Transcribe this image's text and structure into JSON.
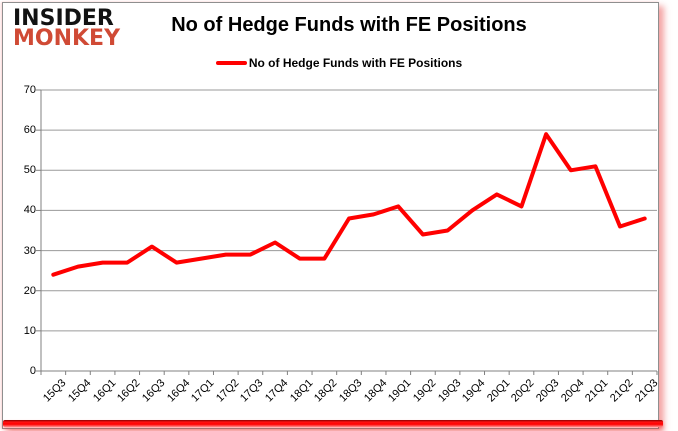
{
  "logo": {
    "line1": "INSIDER",
    "line2": "MONKEY"
  },
  "header": {
    "title": "No of Hedge Funds with FE Positions"
  },
  "legend": {
    "label": "No of Hedge Funds with FE Positions"
  },
  "chart_data": {
    "type": "line",
    "title": "No of Hedge Funds with FE Positions",
    "categories": [
      "15Q3",
      "15Q4",
      "16Q1",
      "16Q2",
      "16Q3",
      "16Q4",
      "17Q1",
      "17Q2",
      "17Q3",
      "17Q4",
      "18Q1",
      "18Q2",
      "18Q3",
      "18Q4",
      "19Q1",
      "19Q2",
      "19Q3",
      "19Q4",
      "20Q1",
      "20Q2",
      "20Q3",
      "20Q4",
      "21Q1",
      "21Q2",
      "21Q3"
    ],
    "series": [
      {
        "name": "No of Hedge Funds with FE Positions",
        "color": "#ff0000",
        "values": [
          24,
          26,
          27,
          27,
          31,
          27,
          28,
          29,
          29,
          32,
          28,
          28,
          38,
          39,
          41,
          34,
          35,
          40,
          44,
          41,
          59,
          50,
          51,
          36,
          38
        ]
      }
    ],
    "ylim": [
      0,
      70
    ],
    "ytick_interval": 10,
    "grid": true,
    "legend_position": "top-center",
    "colors": {
      "line": "#ff0000",
      "grid": "#9a9a9a",
      "axis": "#808080",
      "logo_red": "#d04a35",
      "bottom_bar": "#ff0000",
      "frame_border": "#8f8f8f",
      "shadow_pink": "#f29494"
    }
  }
}
